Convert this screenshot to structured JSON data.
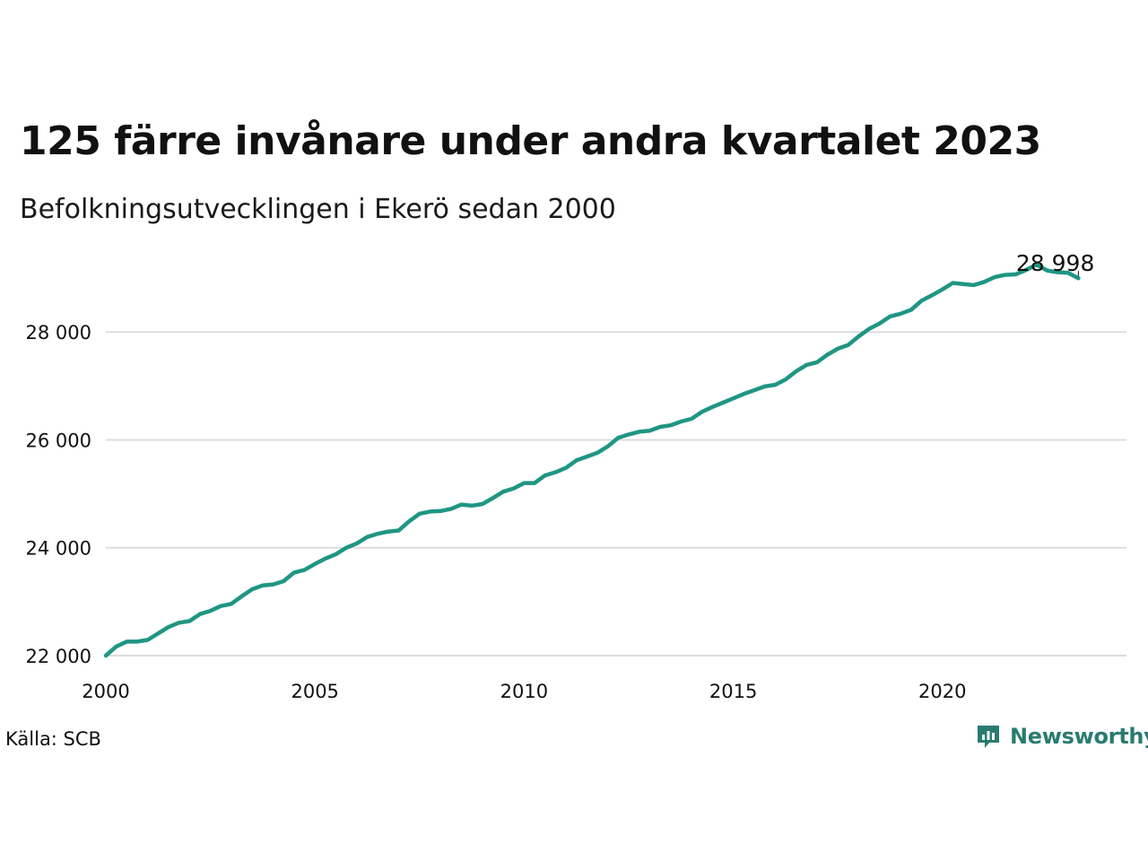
{
  "title": "125 färre invånare under andra kvartalet 2023",
  "subtitle": "Befolkningsutvecklingen i Ekerö sedan 2000",
  "source": "Källa: SCB",
  "brand": {
    "name": "Newsworthy",
    "icon": "newsworthy-logo-icon",
    "color": "#2a7b6f"
  },
  "colors": {
    "line": "#1f9683",
    "grid": "#dddddd"
  },
  "chart_data": {
    "type": "line",
    "title": "125 färre invånare under andra kvartalet 2023",
    "subtitle": "Befolkningsutvecklingen i Ekerö sedan 2000",
    "xlabel": "",
    "ylabel": "",
    "xlim": [
      2000,
      2024.4
    ],
    "ylim": [
      21900,
      29500
    ],
    "x_ticks": [
      2000,
      2005,
      2010,
      2015,
      2020
    ],
    "y_ticks": [
      22000,
      24000,
      26000,
      28000
    ],
    "y_tick_labels": [
      "22 000",
      "24 000",
      "26 000",
      "28 000"
    ],
    "grid": true,
    "end_label": "28 998",
    "series": [
      {
        "x": [
          2000.0,
          2000.25,
          2000.5,
          2000.75,
          2001.0,
          2001.25,
          2001.5,
          2001.75,
          2002.0,
          2002.25,
          2002.5,
          2002.75,
          2003.0,
          2003.25,
          2003.5,
          2003.75,
          2004.0,
          2004.25,
          2004.5,
          2004.75,
          2005.0,
          2005.25,
          2005.5,
          2005.75,
          2006.0,
          2006.25,
          2006.5,
          2006.75,
          2007.0,
          2007.25,
          2007.5,
          2007.75,
          2008.0,
          2008.25,
          2008.5,
          2008.75,
          2009.0,
          2009.25,
          2009.5,
          2009.75,
          2010.0,
          2010.25,
          2010.5,
          2010.75,
          2011.0,
          2011.25,
          2011.5,
          2011.75,
          2012.0,
          2012.25,
          2012.5,
          2012.75,
          2013.0,
          2013.25,
          2013.5,
          2013.75,
          2014.0,
          2014.25,
          2014.5,
          2014.75,
          2015.0,
          2015.25,
          2015.5,
          2015.75,
          2016.0,
          2016.25,
          2016.5,
          2016.75,
          2017.0,
          2017.25,
          2017.5,
          2017.75,
          2018.0,
          2018.25,
          2018.5,
          2018.75,
          2019.0,
          2019.25,
          2019.5,
          2019.75,
          2020.0,
          2020.25,
          2020.5,
          2020.75,
          2021.0,
          2021.25,
          2021.5,
          2021.75,
          2022.0,
          2022.25,
          2022.5,
          2022.75,
          2023.0,
          2023.25
        ],
        "y": [
          22000,
          22170,
          22260,
          22260,
          22290,
          22410,
          22530,
          22610,
          22640,
          22770,
          22830,
          22920,
          22960,
          23100,
          23230,
          23300,
          23320,
          23380,
          23540,
          23590,
          23700,
          23800,
          23880,
          24000,
          24080,
          24200,
          24260,
          24300,
          24320,
          24490,
          24630,
          24670,
          24680,
          24720,
          24800,
          24780,
          24810,
          24920,
          25040,
          25100,
          25200,
          25200,
          25340,
          25400,
          25480,
          25620,
          25690,
          25760,
          25880,
          26040,
          26100,
          26150,
          26170,
          26240,
          26270,
          26340,
          26390,
          26520,
          26610,
          26690,
          26770,
          26850,
          26920,
          26990,
          27020,
          27120,
          27270,
          27390,
          27440,
          27580,
          27690,
          27760,
          27920,
          28060,
          28160,
          28290,
          28340,
          28410,
          28580,
          28680,
          28790,
          28910,
          28890,
          28870,
          28930,
          29020,
          29060,
          29070,
          29150,
          29250,
          29140,
          29110,
          29100,
          28998
        ]
      }
    ]
  }
}
